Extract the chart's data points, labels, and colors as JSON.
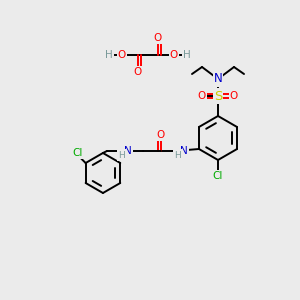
{
  "bg": "#ebebeb",
  "C": "#000000",
  "O": "#ff0000",
  "N": "#0000cc",
  "S": "#cccc00",
  "Cl": "#00aa00",
  "H": "#7a9a9a",
  "lw": 1.4,
  "fs": 7.5,
  "fs_small": 6.8
}
